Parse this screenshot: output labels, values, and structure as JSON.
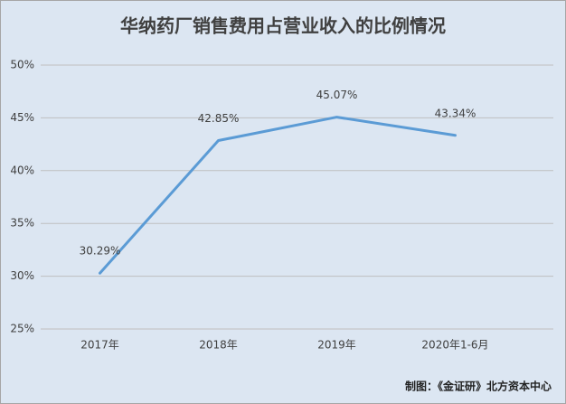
{
  "chart_data": {
    "type": "line",
    "title": "华纳药厂销售费用占营业收入的比例情况",
    "categories": [
      "2017年",
      "2018年",
      "2019年",
      "2020年1-6月"
    ],
    "series": [
      {
        "name": "销售费用占营业收入比例",
        "color": "#5b9bd5",
        "values": [
          30.29,
          42.85,
          45.07,
          43.34
        ],
        "value_labels": [
          "30.29%",
          "42.85%",
          "45.07%",
          "43.34%"
        ]
      }
    ],
    "ylim": [
      25,
      50
    ],
    "yticks": [
      {
        "value": 25,
        "label": "25%"
      },
      {
        "value": 30,
        "label": "30%"
      },
      {
        "value": 35,
        "label": "35%"
      },
      {
        "value": 40,
        "label": "40%"
      },
      {
        "value": 45,
        "label": "45%"
      },
      {
        "value": 50,
        "label": "50%"
      }
    ],
    "grid": true,
    "source": "制图：《金证研》北方资本中心"
  }
}
